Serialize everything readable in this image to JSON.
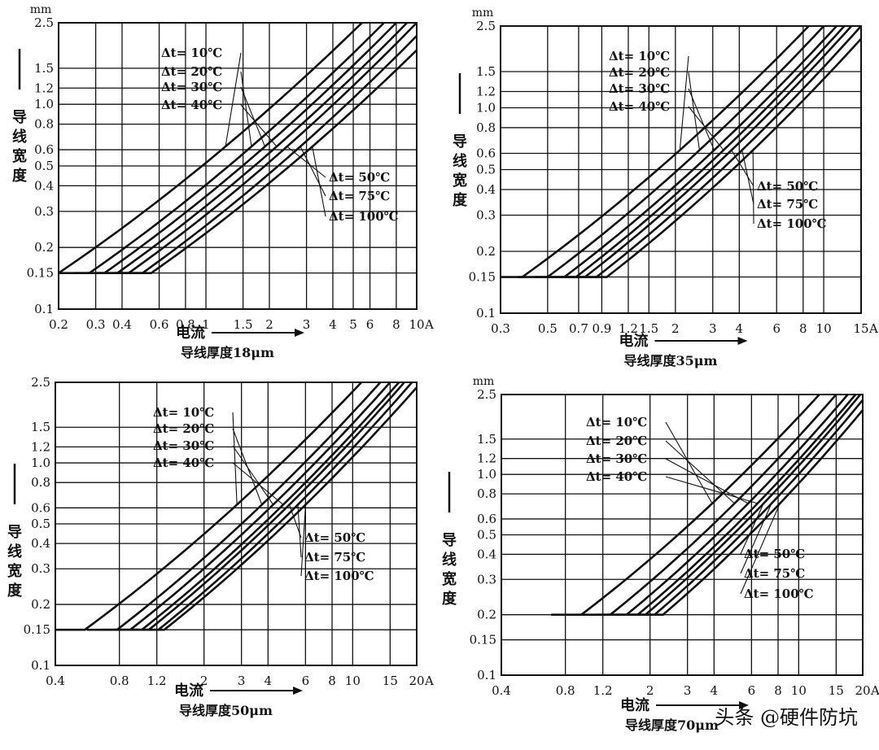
{
  "watermark": "头条 @硬件防坑",
  "icon_colors": {
    "ink": "#111111"
  },
  "chart_data": [
    {
      "type": "line",
      "xscale": "log",
      "yscale": "log",
      "xlim": [
        0.2,
        10
      ],
      "ylim": [
        0.1,
        2.5
      ],
      "y_unit": "mm",
      "ylabel": "导线宽度",
      "xlabel": "电流",
      "x_unit": "A",
      "subtitle": "导线厚度18μm",
      "x_ticks": [
        0.2,
        0.3,
        0.4,
        0.6,
        0.8,
        1,
        1.5,
        2,
        3,
        4,
        5,
        6,
        8,
        10
      ],
      "x_tick_labels": [
        "0.2",
        "0.3",
        "0.4",
        "0.6",
        "0.8",
        "1",
        "1.5",
        "2",
        "3",
        "4",
        "5",
        "6",
        "8",
        "10"
      ],
      "y_ticks": [
        0.1,
        0.15,
        0.2,
        0.3,
        0.4,
        0.5,
        0.6,
        0.8,
        1.0,
        1.2,
        1.5,
        2.5
      ],
      "y_tick_labels": [
        "0.1",
        "0.15",
        "0.2",
        "0.3",
        "0.4",
        "0.5",
        "0.6",
        "0.8",
        "1.0",
        "1.2",
        "1.5",
        "2.5"
      ],
      "series": [
        {
          "name": "Δt= 10℃",
          "x": [
            0.2,
            5.5
          ],
          "y": [
            0.15,
            2.5
          ]
        },
        {
          "name": "Δt= 20℃",
          "x": [
            0.28,
            7.0
          ],
          "y": [
            0.15,
            2.5
          ]
        },
        {
          "name": "Δt= 30℃",
          "x": [
            0.33,
            8.0
          ],
          "y": [
            0.15,
            2.5
          ]
        },
        {
          "name": "Δt= 40℃",
          "x": [
            0.38,
            9.0
          ],
          "y": [
            0.15,
            2.5
          ]
        },
        {
          "name": "Δt= 50℃",
          "x": [
            0.43,
            10.0
          ],
          "y": [
            0.15,
            2.5
          ]
        },
        {
          "name": "Δt= 75℃",
          "x": [
            0.5,
            11.5
          ],
          "y": [
            0.15,
            2.5
          ]
        },
        {
          "name": "Δt= 100℃",
          "x": [
            0.55,
            13.5
          ],
          "y": [
            0.15,
            2.5
          ]
        }
      ]
    },
    {
      "type": "line",
      "xscale": "log",
      "yscale": "log",
      "xlim": [
        0.3,
        15
      ],
      "ylim": [
        0.1,
        2.5
      ],
      "y_unit": "mm",
      "ylabel": "导线宽度",
      "xlabel": "电流",
      "x_unit": "A",
      "subtitle": "导线厚度35μm",
      "x_ticks": [
        0.3,
        0.5,
        0.7,
        0.9,
        1.2,
        1.5,
        2,
        3,
        4,
        6,
        8,
        10,
        15
      ],
      "x_tick_labels": [
        "0.3",
        "0.5",
        "0.7",
        "0.9",
        "1.2",
        "1.5",
        "2",
        "3",
        "4",
        "6",
        "8",
        "10",
        "15"
      ],
      "y_ticks": [
        0.1,
        0.15,
        0.2,
        0.3,
        0.4,
        0.5,
        0.6,
        0.8,
        1.0,
        1.2,
        1.5,
        2.5
      ],
      "y_tick_labels": [
        "0.1",
        "0.15",
        "0.2",
        "0.3",
        "0.4",
        "0.5",
        "0.6",
        "0.8",
        "1.0",
        "1.2",
        "1.5",
        "2.5"
      ],
      "series": [
        {
          "name": "Δt= 10℃",
          "x": [
            0.38,
            8.5
          ],
          "y": [
            0.15,
            2.5
          ]
        },
        {
          "name": "Δt= 20℃",
          "x": [
            0.5,
            10.0
          ],
          "y": [
            0.15,
            2.5
          ]
        },
        {
          "name": "Δt= 30℃",
          "x": [
            0.6,
            11.5
          ],
          "y": [
            0.15,
            2.5
          ]
        },
        {
          "name": "Δt= 40℃",
          "x": [
            0.68,
            12.5
          ],
          "y": [
            0.15,
            2.5
          ]
        },
        {
          "name": "Δt= 50℃",
          "x": [
            0.75,
            13.5
          ],
          "y": [
            0.15,
            2.5
          ]
        },
        {
          "name": "Δt= 75℃",
          "x": [
            0.85,
            15.0
          ],
          "y": [
            0.15,
            2.5
          ]
        },
        {
          "name": "Δt= 100℃",
          "x": [
            0.95,
            17.0
          ],
          "y": [
            0.15,
            2.5
          ]
        }
      ]
    },
    {
      "type": "line",
      "xscale": "log",
      "yscale": "log",
      "xlim": [
        0.4,
        20
      ],
      "ylim": [
        0.1,
        2.5
      ],
      "y_unit": "",
      "ylabel": "导线宽度",
      "xlabel": "电流",
      "x_unit": "A",
      "subtitle": "导线厚度50μm",
      "x_ticks": [
        0.4,
        0.8,
        1.2,
        2,
        3,
        4,
        6,
        8,
        10,
        15,
        20
      ],
      "x_tick_labels": [
        "0.4",
        "0.8",
        "1.2",
        "2",
        "3",
        "4",
        "6",
        "8",
        "10",
        "15",
        "20"
      ],
      "y_ticks": [
        0.1,
        0.15,
        0.2,
        0.3,
        0.4,
        0.5,
        0.6,
        0.8,
        1.0,
        1.2,
        1.5,
        2.5
      ],
      "y_tick_labels": [
        "0.1",
        "0.15",
        "0.2",
        "0.3",
        "0.4",
        "0.5",
        "0.6",
        "0.8",
        "1.0",
        "1.2",
        "1.5",
        "2.5"
      ],
      "series": [
        {
          "name": "Δt= 10℃",
          "x": [
            0.55,
            11.0
          ],
          "y": [
            0.15,
            2.5
          ]
        },
        {
          "name": "Δt= 20℃",
          "x": [
            0.78,
            13.5
          ],
          "y": [
            0.15,
            2.5
          ]
        },
        {
          "name": "Δt= 30℃",
          "x": [
            0.9,
            15.0
          ],
          "y": [
            0.15,
            2.5
          ]
        },
        {
          "name": "Δt= 40℃",
          "x": [
            1.02,
            16.5
          ],
          "y": [
            0.15,
            2.5
          ]
        },
        {
          "name": "Δt= 50℃",
          "x": [
            1.1,
            17.5
          ],
          "y": [
            0.15,
            2.5
          ]
        },
        {
          "name": "Δt= 75℃",
          "x": [
            1.22,
            19.0
          ],
          "y": [
            0.15,
            2.5
          ]
        },
        {
          "name": "Δt= 100℃",
          "x": [
            1.3,
            21.0
          ],
          "y": [
            0.15,
            2.5
          ]
        }
      ]
    },
    {
      "type": "line",
      "xscale": "log",
      "yscale": "log",
      "xlim": [
        0.4,
        20
      ],
      "ylim": [
        0.1,
        2.5
      ],
      "y_unit": "mm",
      "ylabel": "导线宽度",
      "xlabel": "电流",
      "x_unit": "A",
      "subtitle": "导线厚度70μm",
      "x_ticks": [
        0.4,
        0.8,
        1.2,
        2,
        3,
        4,
        6,
        8,
        10,
        15,
        20
      ],
      "x_tick_labels": [
        "0.4",
        "0.8",
        "1.2",
        "2",
        "3",
        "4",
        "6",
        "8",
        "10",
        "15",
        "20"
      ],
      "y_ticks": [
        0.1,
        0.15,
        0.2,
        0.3,
        0.4,
        0.5,
        0.6,
        0.8,
        1.0,
        1.2,
        1.5,
        2.5
      ],
      "y_tick_labels": [
        "0.1",
        "0.15",
        "0.2",
        "0.3",
        "0.4",
        "0.5",
        "0.6",
        "0.8",
        "1.0",
        "1.2",
        "1.5",
        "2.5"
      ],
      "series": [
        {
          "name": "Δt= 10℃",
          "x": [
            0.95,
            12.5
          ],
          "y": [
            0.2,
            2.5
          ]
        },
        {
          "name": "Δt= 20℃",
          "x": [
            1.3,
            15.0
          ],
          "y": [
            0.2,
            2.5
          ]
        },
        {
          "name": "Δt= 30℃",
          "x": [
            1.55,
            17.0
          ],
          "y": [
            0.2,
            2.5
          ]
        },
        {
          "name": "Δt= 40℃",
          "x": [
            1.75,
            18.5
          ],
          "y": [
            0.2,
            2.5
          ]
        },
        {
          "name": "Δt= 50℃",
          "x": [
            1.9,
            19.5
          ],
          "y": [
            0.2,
            2.5
          ]
        },
        {
          "name": "Δt= 75℃",
          "x": [
            2.1,
            21.0
          ],
          "y": [
            0.2,
            2.5
          ]
        },
        {
          "name": "Δt= 100℃",
          "x": [
            2.3,
            23.0
          ],
          "y": [
            0.2,
            2.5
          ]
        }
      ]
    }
  ]
}
